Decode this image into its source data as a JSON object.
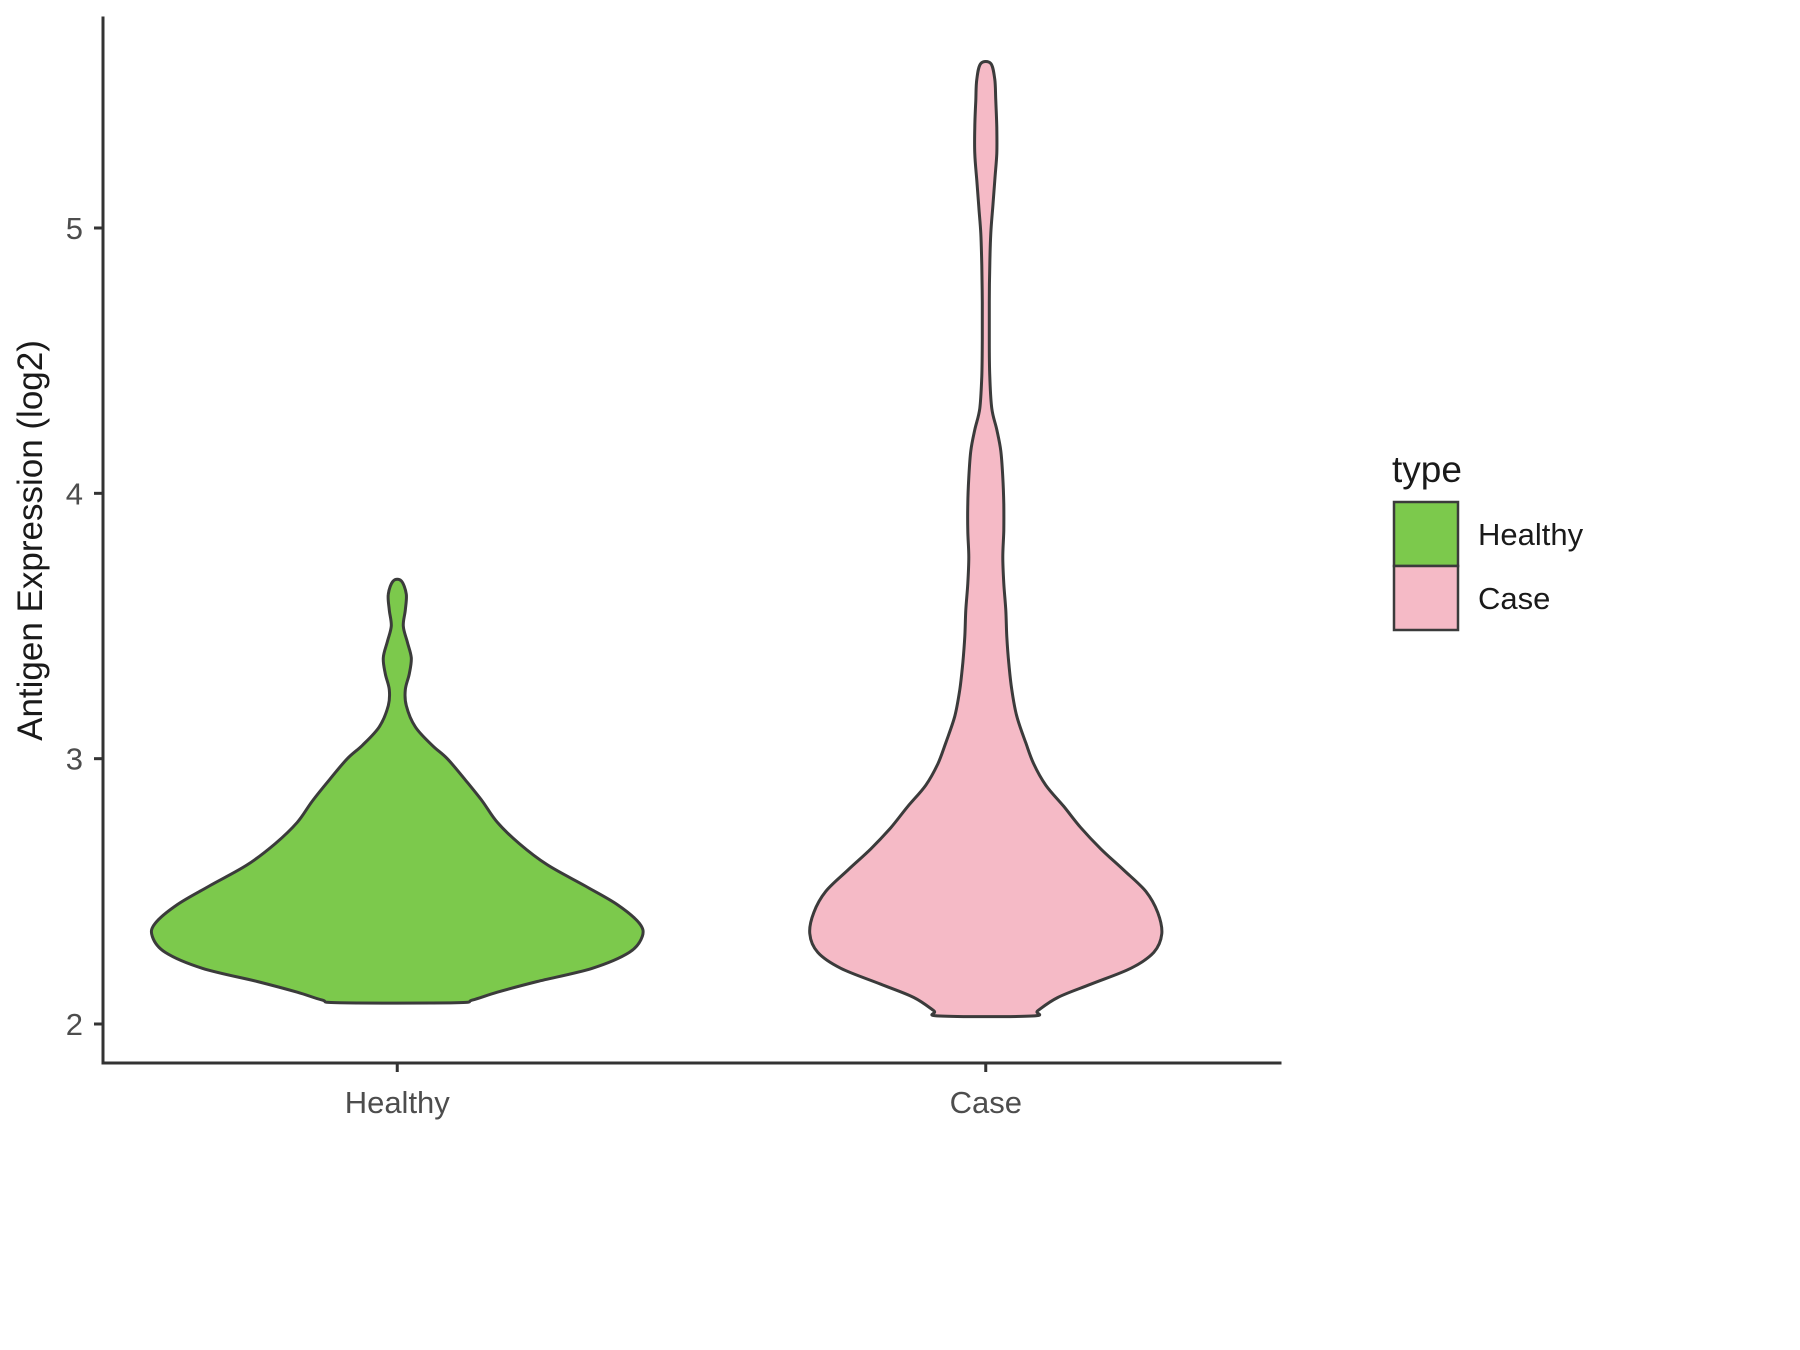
{
  "chart_data": {
    "type": "violin",
    "title": "",
    "xlabel": "",
    "ylabel": "Antigen Expression (log2)",
    "categories": [
      "Healthy",
      "Case"
    ],
    "y_ticks": [
      2,
      3,
      4,
      5
    ],
    "ylim": [
      1.85,
      5.78
    ],
    "grid": "off",
    "legend": {
      "position": "right",
      "title": "type",
      "entries": [
        {
          "label": "Healthy",
          "color": "#7CC94C"
        },
        {
          "label": "Case",
          "color": "#F5BAC6"
        }
      ]
    },
    "axis_color": "#333333",
    "outline_color": "#3B3B3B",
    "tick_label_color": "#4D4D4D",
    "axis_title_color": "#1A1A1A",
    "series": [
      {
        "name": "Healthy",
        "color": "#7CC94C",
        "value_range": [
          2.08,
          3.67
        ],
        "profile": [
          [
            3.67,
            4
          ],
          [
            3.62,
            9
          ],
          [
            3.56,
            8
          ],
          [
            3.5,
            6
          ],
          [
            3.44,
            10
          ],
          [
            3.38,
            14
          ],
          [
            3.32,
            12
          ],
          [
            3.26,
            8
          ],
          [
            3.2,
            9
          ],
          [
            3.12,
            18
          ],
          [
            3.05,
            35
          ],
          [
            3.0,
            50
          ],
          [
            2.92,
            68
          ],
          [
            2.84,
            85
          ],
          [
            2.76,
            100
          ],
          [
            2.68,
            122
          ],
          [
            2.6,
            150
          ],
          [
            2.52,
            188
          ],
          [
            2.45,
            220
          ],
          [
            2.38,
            242
          ],
          [
            2.33,
            245
          ],
          [
            2.27,
            232
          ],
          [
            2.21,
            195
          ],
          [
            2.16,
            140
          ],
          [
            2.12,
            100
          ],
          [
            2.09,
            75
          ],
          [
            2.08,
            58
          ]
        ]
      },
      {
        "name": "Case",
        "color": "#F5BAC6",
        "value_range": [
          2.03,
          5.62
        ],
        "profile": [
          [
            5.62,
            5
          ],
          [
            5.56,
            9
          ],
          [
            5.48,
            10
          ],
          [
            5.38,
            11
          ],
          [
            5.28,
            11
          ],
          [
            5.18,
            9
          ],
          [
            5.08,
            7
          ],
          [
            4.98,
            5
          ],
          [
            4.86,
            4
          ],
          [
            4.72,
            3.5
          ],
          [
            4.58,
            3.5
          ],
          [
            4.44,
            4
          ],
          [
            4.32,
            6
          ],
          [
            4.24,
            11
          ],
          [
            4.16,
            15
          ],
          [
            4.06,
            17
          ],
          [
            3.96,
            18
          ],
          [
            3.86,
            18
          ],
          [
            3.76,
            17
          ],
          [
            3.66,
            18
          ],
          [
            3.56,
            20
          ],
          [
            3.46,
            21
          ],
          [
            3.36,
            23
          ],
          [
            3.26,
            26
          ],
          [
            3.16,
            31
          ],
          [
            3.06,
            40
          ],
          [
            2.98,
            48
          ],
          [
            2.9,
            60
          ],
          [
            2.82,
            78
          ],
          [
            2.74,
            95
          ],
          [
            2.66,
            115
          ],
          [
            2.58,
            138
          ],
          [
            2.5,
            160
          ],
          [
            2.42,
            172
          ],
          [
            2.34,
            176
          ],
          [
            2.27,
            168
          ],
          [
            2.21,
            145
          ],
          [
            2.15,
            105
          ],
          [
            2.1,
            72
          ],
          [
            2.05,
            52
          ],
          [
            2.03,
            46
          ]
        ]
      }
    ]
  }
}
